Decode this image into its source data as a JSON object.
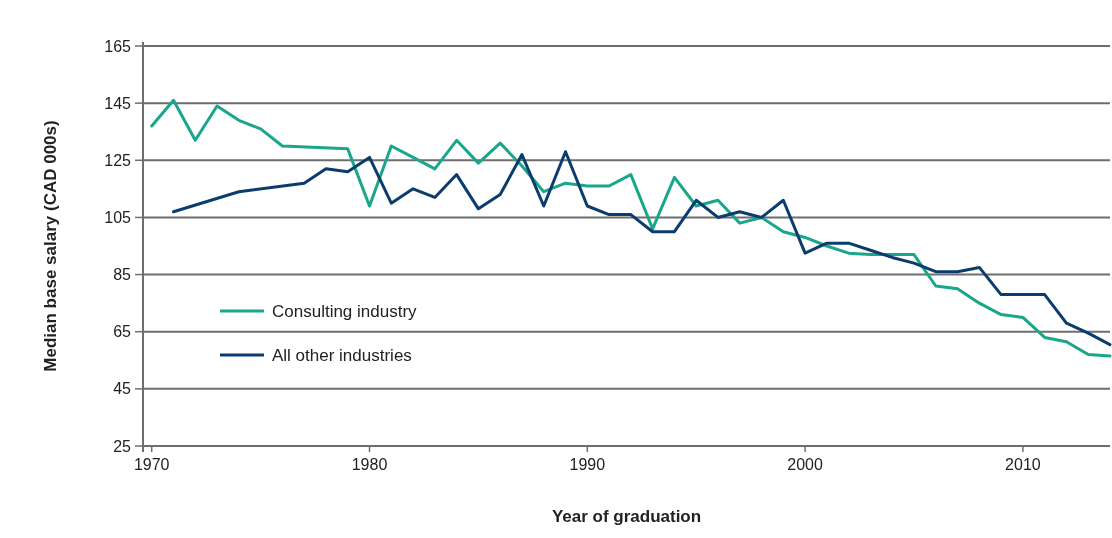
{
  "chart_data": {
    "type": "line",
    "xlabel": "Year of graduation",
    "ylabel": "Median base salary (CAD 000s)",
    "xlim": [
      1969.6,
      2014
    ],
    "xticks": [
      1970,
      1980,
      1990,
      2000,
      2010
    ],
    "ylim": [
      25,
      165
    ],
    "yticks": [
      25,
      45,
      65,
      85,
      105,
      125,
      145,
      165
    ],
    "grid": "y",
    "legend": "left",
    "marker": "none",
    "line_style": "solid",
    "series": [
      {
        "name": "Consulting industry",
        "color": "#1aa68a",
        "x": [
          1970,
          1971,
          1972,
          1973,
          1974,
          1975,
          1976,
          1979,
          1980,
          1981,
          1982,
          1983,
          1984,
          1985,
          1986,
          1987,
          1988,
          1989,
          1990,
          1991,
          1992,
          1993,
          1994,
          1995,
          1996,
          1997,
          1998,
          1999,
          2000,
          2001,
          2002,
          2003,
          2004,
          2005,
          2006,
          2007,
          2008,
          2009,
          2010,
          2011,
          2012,
          2013,
          2014
        ],
        "values": [
          137,
          146,
          132,
          144,
          139,
          136,
          130,
          129,
          109,
          130,
          126,
          122,
          132,
          124,
          131,
          123,
          114,
          117,
          116,
          116,
          120,
          101,
          119,
          109,
          111,
          103,
          105,
          100,
          98,
          95,
          92.5,
          92,
          92,
          92,
          81,
          80,
          75,
          71,
          70,
          63,
          61.5,
          57,
          56.5
        ]
      },
      {
        "name": "All other industries",
        "color": "#0b3c6e",
        "x": [
          1971,
          1974,
          1977,
          1978,
          1979,
          1980,
          1981,
          1982,
          1983,
          1984,
          1985,
          1986,
          1987,
          1988,
          1989,
          1990,
          1991,
          1992,
          1993,
          1994,
          1995,
          1996,
          1997,
          1998,
          1999,
          2000,
          2001,
          2002,
          2003,
          2004,
          2005,
          2006,
          2007,
          2008,
          2009,
          2010,
          2011,
          2012,
          2013,
          2014
        ],
        "values": [
          107,
          114,
          117,
          122,
          121,
          126,
          110,
          115,
          112,
          120,
          108,
          113,
          127,
          109,
          128,
          109,
          106,
          106,
          100,
          100,
          111,
          105,
          107,
          105,
          111,
          92.5,
          96,
          96,
          93.5,
          91,
          89,
          86,
          86,
          87.5,
          78,
          78,
          78,
          68,
          64.5,
          60.5
        ]
      }
    ]
  }
}
